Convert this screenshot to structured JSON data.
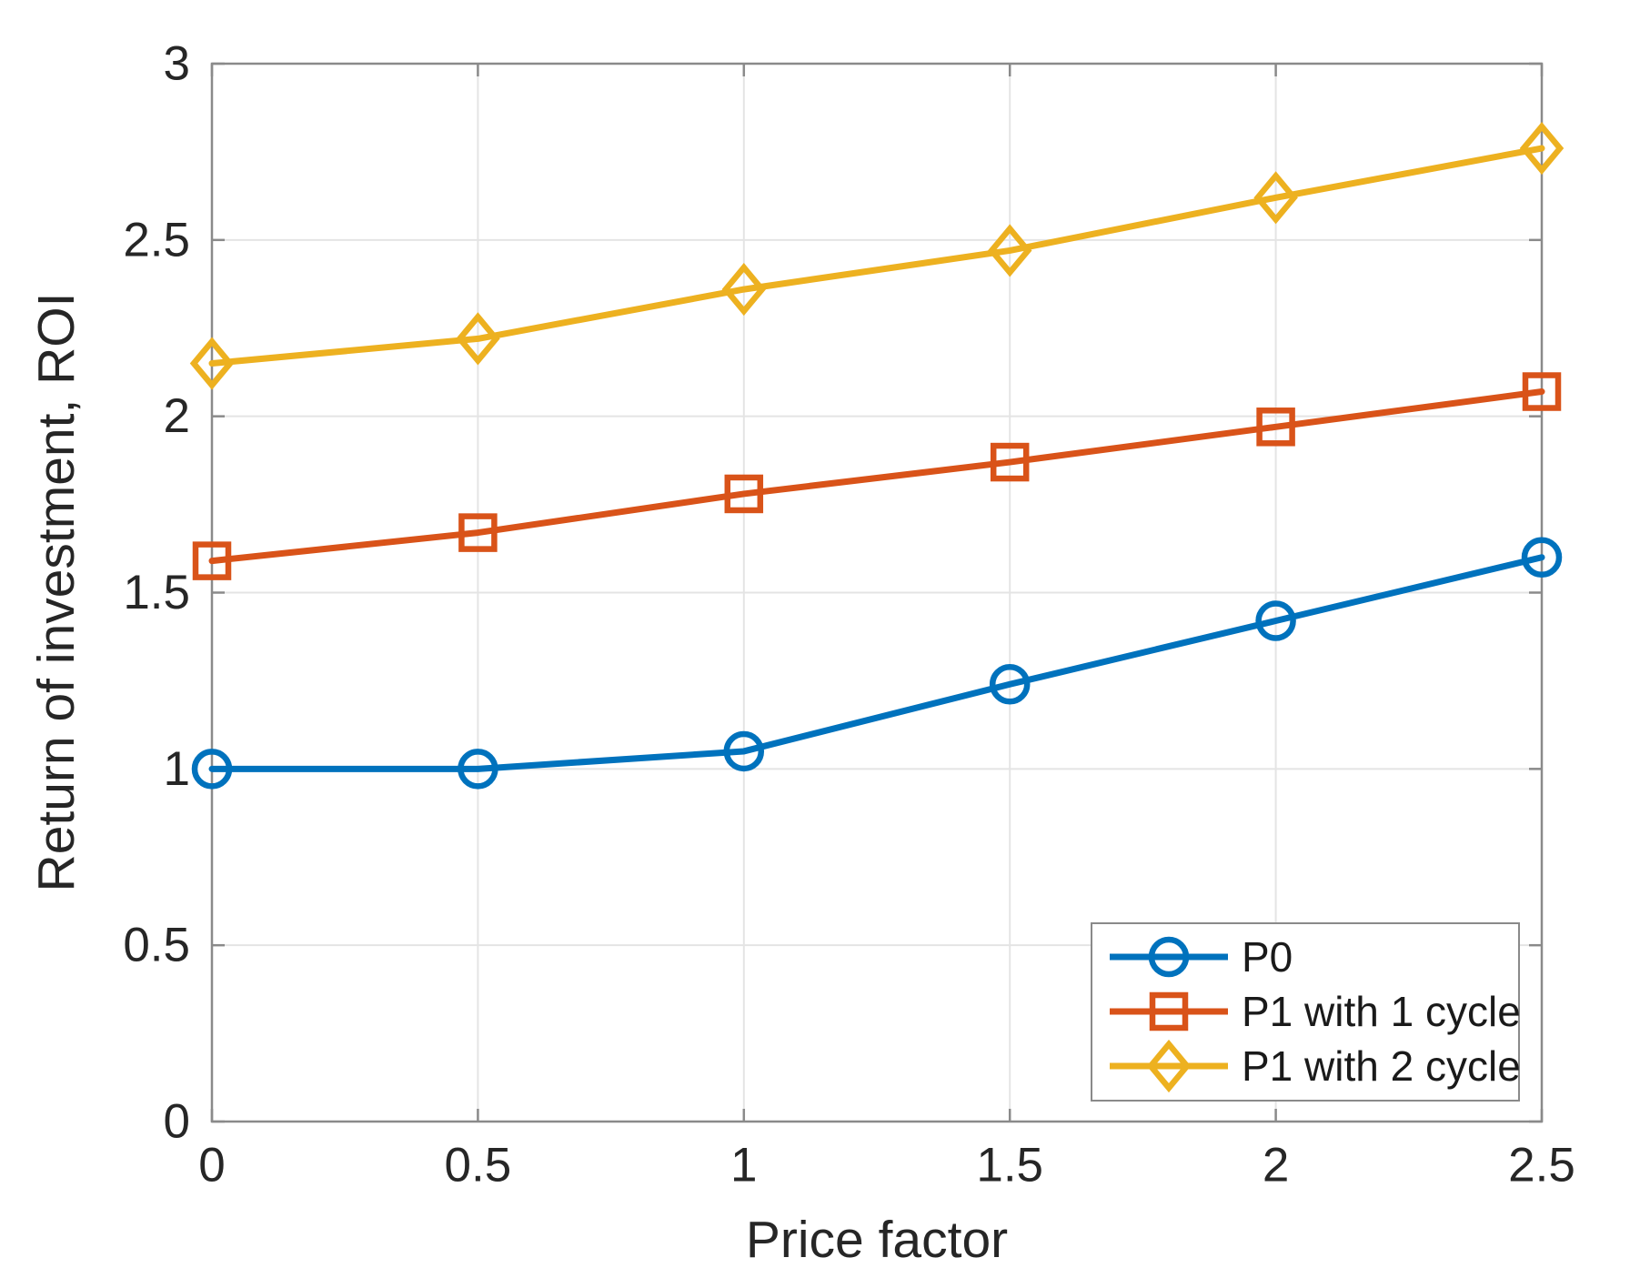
{
  "chart_data": {
    "type": "line",
    "title": "",
    "xlabel": "Price factor",
    "ylabel": "Return of investment, ROI",
    "x": [
      0,
      0.5,
      1,
      1.5,
      2,
      2.5
    ],
    "series": [
      {
        "name": "P0",
        "marker": "circle",
        "color": "#0072BD",
        "values": [
          1.0,
          1.0,
          1.05,
          1.24,
          1.42,
          1.6
        ]
      },
      {
        "name": "P1 with 1 cycle",
        "marker": "square",
        "color": "#D95319",
        "values": [
          1.59,
          1.67,
          1.78,
          1.87,
          1.97,
          2.07
        ]
      },
      {
        "name": "P1 with 2 cycle",
        "marker": "diamond",
        "color": "#EDB120",
        "values": [
          2.15,
          2.22,
          2.36,
          2.47,
          2.62,
          2.76
        ]
      }
    ],
    "xlim": [
      0,
      2.5
    ],
    "ylim": [
      0,
      3
    ],
    "xticks": [
      "0",
      "0.5",
      "1",
      "1.5",
      "2",
      "2.5"
    ],
    "yticks": [
      "0",
      "0.5",
      "1",
      "1.5",
      "2",
      "2.5",
      "3"
    ],
    "grid": true,
    "legend_position": "bottom-right",
    "style": {
      "background": "#FFFFFF",
      "grid_color": "#E4E4E4",
      "axis_color": "#8A8A8A",
      "tick_label_color": "#262626",
      "legend_border_color": "#8A8A8A",
      "legend_text_color": "#1A1A1A"
    }
  }
}
